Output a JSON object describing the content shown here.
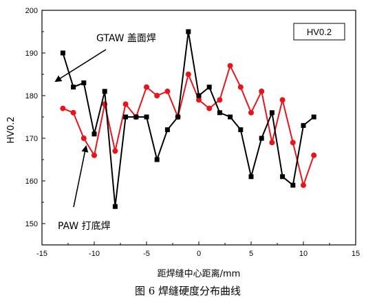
{
  "chart_data": {
    "type": "line",
    "xlabel": "距焊缝中心距离/mm",
    "ylabel": "HV0.2",
    "xlim": [
      -15,
      15
    ],
    "ylim": [
      145,
      200
    ],
    "xticks": [
      -15,
      -10,
      -5,
      0,
      5,
      10,
      15
    ],
    "yticks": [
      150,
      160,
      170,
      180,
      190,
      200
    ],
    "grid": false,
    "box_label": "HV0.2",
    "caption": "图 6 焊缝硬度分布曲线",
    "annotations": [
      {
        "text": "GTAW 盖面焊",
        "series": "GTAW"
      },
      {
        "text": "PAW 打底焊",
        "series": "PAW"
      }
    ],
    "series": [
      {
        "key": "GTAW",
        "color": "#000000",
        "marker": "square",
        "x": [
          -13,
          -12,
          -11,
          -10,
          -9,
          -8,
          -7,
          -6,
          -5,
          -4,
          -3,
          -2,
          -1,
          0,
          1,
          2,
          3,
          4,
          5,
          6,
          7,
          8,
          9,
          10,
          11
        ],
        "y": [
          190,
          182,
          183,
          171,
          181,
          154,
          175,
          175,
          175,
          165,
          172,
          175,
          195,
          180,
          182,
          176,
          175,
          172,
          161,
          170,
          176,
          161,
          159,
          173,
          175
        ]
      },
      {
        "key": "PAW",
        "color": "#e8141c",
        "marker": "circle",
        "x": [
          -13,
          -12,
          -11,
          -10,
          -9,
          -8,
          -7,
          -6,
          -5,
          -4,
          -3,
          -2,
          -1,
          0,
          1,
          2,
          3,
          4,
          5,
          6,
          7,
          8,
          9,
          10,
          11
        ],
        "y": [
          177,
          176,
          170,
          166,
          178,
          167,
          178,
          175,
          182,
          180,
          181,
          175,
          185,
          179,
          177,
          179,
          187,
          182,
          176,
          181,
          169,
          179,
          169,
          159,
          166
        ]
      }
    ]
  }
}
